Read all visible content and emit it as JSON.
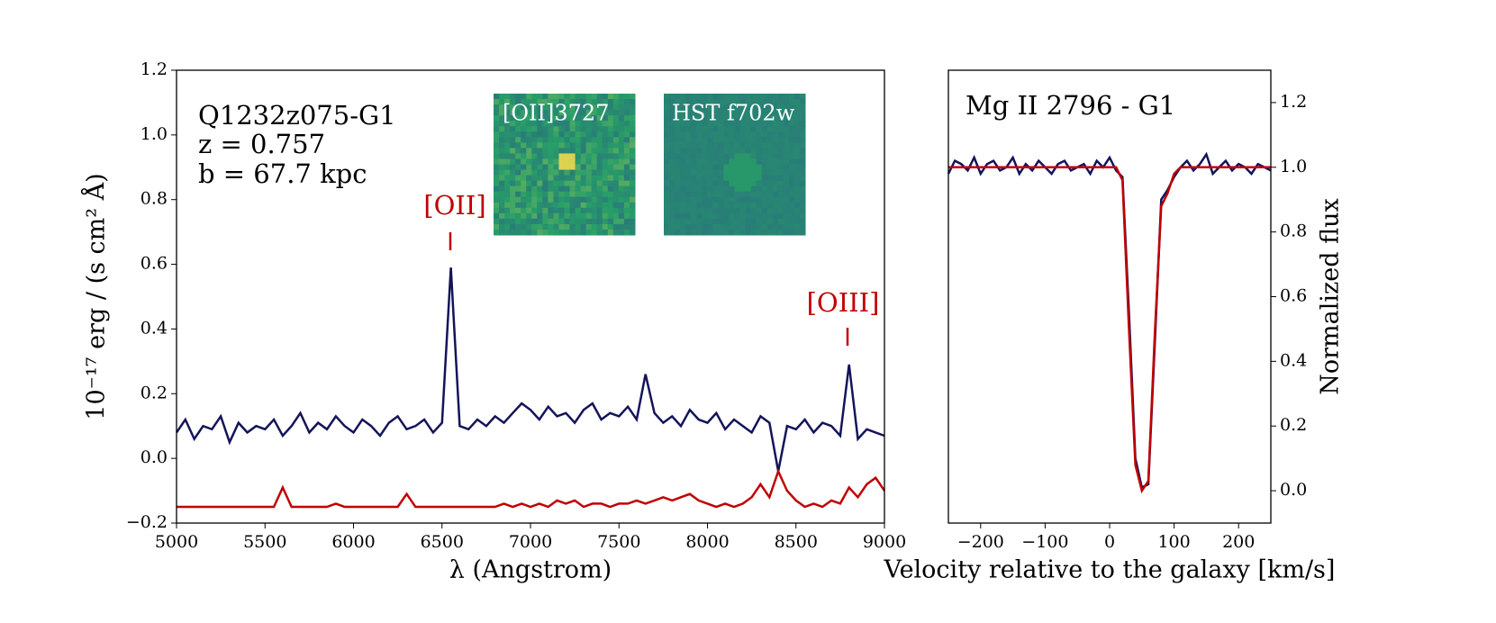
{
  "chart_data": [
    {
      "type": "line",
      "xlabel": "λ (Angstrom)",
      "ylabel": "10⁻¹⁷ erg / (s cm² Å)",
      "annotations": [
        "Q1232z075-G1",
        "z = 0.757",
        "b = 67.7 kpc",
        "[OII]",
        "[OIII]",
        "[OII]3727",
        "HST f702w"
      ],
      "x": [
        5000,
        5050,
        5100,
        5150,
        5200,
        5250,
        5300,
        5350,
        5400,
        5450,
        5500,
        5550,
        5600,
        5650,
        5700,
        5750,
        5800,
        5850,
        5900,
        5950,
        6000,
        6050,
        6100,
        6150,
        6200,
        6250,
        6300,
        6350,
        6400,
        6450,
        6500,
        6550,
        6600,
        6650,
        6700,
        6750,
        6800,
        6850,
        6900,
        6950,
        7000,
        7050,
        7100,
        7150,
        7200,
        7250,
        7300,
        7350,
        7400,
        7450,
        7500,
        7550,
        7600,
        7650,
        7700,
        7750,
        7800,
        7850,
        7900,
        7950,
        8000,
        8050,
        8100,
        8150,
        8200,
        8250,
        8300,
        8350,
        8400,
        8450,
        8500,
        8550,
        8600,
        8650,
        8700,
        8750,
        8800,
        8850,
        8900,
        8950,
        9000
      ],
      "series": [
        {
          "color": "#14145a",
          "values": [
            0.08,
            0.12,
            0.06,
            0.1,
            0.09,
            0.13,
            0.05,
            0.11,
            0.08,
            0.1,
            0.09,
            0.12,
            0.07,
            0.1,
            0.14,
            0.08,
            0.11,
            0.09,
            0.13,
            0.1,
            0.08,
            0.12,
            0.1,
            0.07,
            0.11,
            0.13,
            0.09,
            0.1,
            0.12,
            0.08,
            0.11,
            0.59,
            0.1,
            0.09,
            0.12,
            0.1,
            0.13,
            0.11,
            0.14,
            0.17,
            0.15,
            0.12,
            0.16,
            0.13,
            0.14,
            0.11,
            0.15,
            0.17,
            0.12,
            0.14,
            0.13,
            0.16,
            0.12,
            0.26,
            0.14,
            0.11,
            0.13,
            0.1,
            0.15,
            0.12,
            0.11,
            0.14,
            0.09,
            0.12,
            0.1,
            0.08,
            0.13,
            0.11,
            -0.04,
            0.1,
            0.09,
            0.12,
            0.08,
            0.11,
            0.1,
            0.07,
            0.29,
            0.06,
            0.09,
            0.08,
            0.07
          ]
        },
        {
          "color": "#c00000",
          "values": [
            -0.15,
            -0.15,
            -0.15,
            -0.15,
            -0.15,
            -0.15,
            -0.15,
            -0.15,
            -0.15,
            -0.15,
            -0.15,
            -0.15,
            -0.09,
            -0.15,
            -0.15,
            -0.15,
            -0.15,
            -0.15,
            -0.14,
            -0.15,
            -0.15,
            -0.15,
            -0.15,
            -0.15,
            -0.15,
            -0.15,
            -0.11,
            -0.15,
            -0.15,
            -0.15,
            -0.15,
            -0.15,
            -0.15,
            -0.15,
            -0.15,
            -0.15,
            -0.15,
            -0.14,
            -0.15,
            -0.14,
            -0.15,
            -0.14,
            -0.15,
            -0.13,
            -0.14,
            -0.13,
            -0.15,
            -0.14,
            -0.14,
            -0.15,
            -0.14,
            -0.14,
            -0.13,
            -0.14,
            -0.13,
            -0.12,
            -0.13,
            -0.12,
            -0.11,
            -0.13,
            -0.14,
            -0.15,
            -0.14,
            -0.15,
            -0.14,
            -0.12,
            -0.08,
            -0.12,
            -0.04,
            -0.1,
            -0.13,
            -0.15,
            -0.14,
            -0.15,
            -0.13,
            -0.14,
            -0.09,
            -0.12,
            -0.08,
            -0.06,
            -0.1
          ]
        }
      ],
      "xlim": [
        5000,
        9000
      ],
      "ylim": [
        -0.2,
        1.2
      ],
      "xticks": [
        5000,
        5500,
        6000,
        6500,
        7000,
        7500,
        8000,
        8500,
        9000
      ],
      "yticks": [
        {
          "value": -0.2,
          "label": "−0.2"
        },
        {
          "value": 0,
          "label": "0.0"
        },
        0.2,
        0.4,
        0.6,
        0.8,
        {
          "value": 1,
          "label": "1.0"
        },
        1.2
      ]
    },
    {
      "type": "line",
      "xlabel": "Velocity relative to the galaxy [km/s]",
      "ylabel": "Normalized flux",
      "annotations": [
        "Mg II 2796 - G1"
      ],
      "x": [
        -250,
        -240,
        -230,
        -220,
        -210,
        -200,
        -190,
        -180,
        -170,
        -160,
        -150,
        -140,
        -130,
        -120,
        -110,
        -100,
        -90,
        -80,
        -70,
        -60,
        -50,
        -40,
        -30,
        -20,
        -10,
        0,
        10,
        20,
        30,
        40,
        50,
        60,
        70,
        80,
        90,
        100,
        110,
        120,
        130,
        140,
        150,
        160,
        170,
        180,
        190,
        200,
        210,
        220,
        230,
        240,
        250
      ],
      "series": [
        {
          "color": "#14145a",
          "values": [
            0.98,
            1.02,
            1.01,
            0.99,
            1.03,
            0.98,
            1.01,
            1.02,
            0.99,
            1.0,
            1.03,
            0.98,
            1.01,
            0.99,
            1.02,
            1.0,
            0.98,
            1.01,
            1.02,
            0.99,
            1.0,
            1.01,
            0.98,
            1.02,
            1.0,
            1.03,
            0.99,
            0.97,
            0.55,
            0.1,
            0.01,
            0.02,
            0.45,
            0.9,
            0.93,
            0.97,
            1.0,
            1.02,
            0.99,
            1.01,
            1.04,
            0.98,
            1.0,
            1.02,
            0.99,
            1.01,
            1.0,
            0.98,
            1.01,
            1.0,
            0.99
          ]
        },
        {
          "color": "#c00000",
          "values": [
            1,
            1,
            1,
            1,
            1,
            1,
            1,
            1,
            1,
            1,
            1,
            1,
            1,
            1,
            1,
            1,
            1,
            1,
            1,
            1,
            1,
            1,
            1,
            1,
            1,
            1,
            1,
            0.96,
            0.5,
            0.08,
            0.0,
            0.03,
            0.48,
            0.88,
            0.92,
            0.98,
            1,
            1,
            1,
            1,
            1,
            1,
            1,
            1,
            1,
            1,
            1,
            1,
            1,
            1,
            1
          ]
        }
      ],
      "xlim": [
        -250,
        250
      ],
      "ylim": [
        -0.1,
        1.3
      ],
      "xticks": [
        {
          "value": -200,
          "label": "−200"
        },
        {
          "value": -100,
          "label": "−100"
        },
        0,
        100,
        200
      ],
      "yticks": [
        {
          "value": 0,
          "label": "0.0"
        },
        0.2,
        0.4,
        0.6,
        0.8,
        {
          "value": 1,
          "label": "1.0"
        },
        1.2
      ]
    }
  ]
}
